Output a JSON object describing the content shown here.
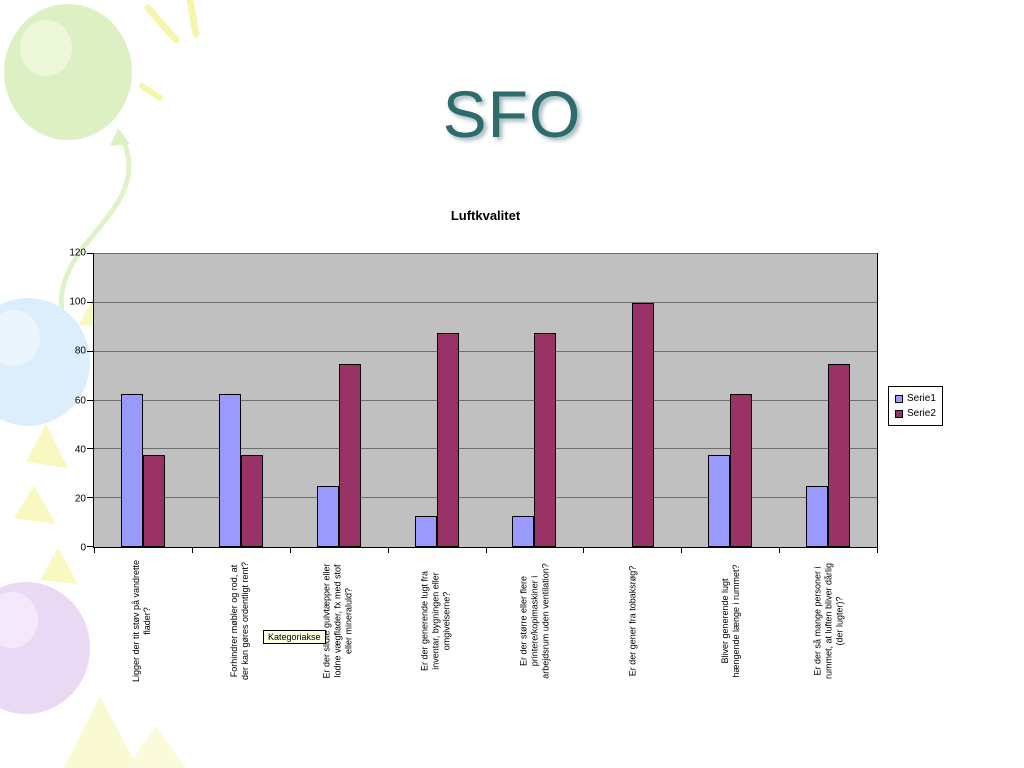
{
  "slide": {
    "title": "SFO"
  },
  "chart_data": {
    "type": "bar",
    "title": "Luftkvalitet",
    "categories": [
      "Ligger der tit støv på vandrette flader?",
      "Forhindrer møbler og rod, at der kan gøres ordentligt rent?",
      "Er der slidte gulvtæpper eller lodne vægflader, fx med stof eller mineraluld?",
      "Er der generende lugt fra inventar, bygningen eller omgivelserne?",
      "Er der større eller flere printere/kopimaskiner i arbejdsrum uden ventilation?",
      "Er der gener fra tobaksrøg?",
      "Bliver generende lugt hængende længe i rummet?",
      "Er der så mange personer i rummet, at luften bliver dårlig (der lugter)?"
    ],
    "series": [
      {
        "name": "Serie1",
        "color": "#9999FF",
        "values": [
          62.5,
          62.5,
          25,
          12.5,
          12.5,
          0,
          37.5,
          25
        ]
      },
      {
        "name": "Serie2",
        "color": "#993366",
        "values": [
          37.5,
          37.5,
          75,
          87.5,
          87.5,
          100,
          62.5,
          75
        ]
      }
    ],
    "ylim": [
      0,
      120
    ],
    "ytick_step": 20,
    "grid": true,
    "legend_position": "right",
    "plot_bg": "#C0C0C0",
    "axis_tooltip": "Kategoriakse"
  }
}
